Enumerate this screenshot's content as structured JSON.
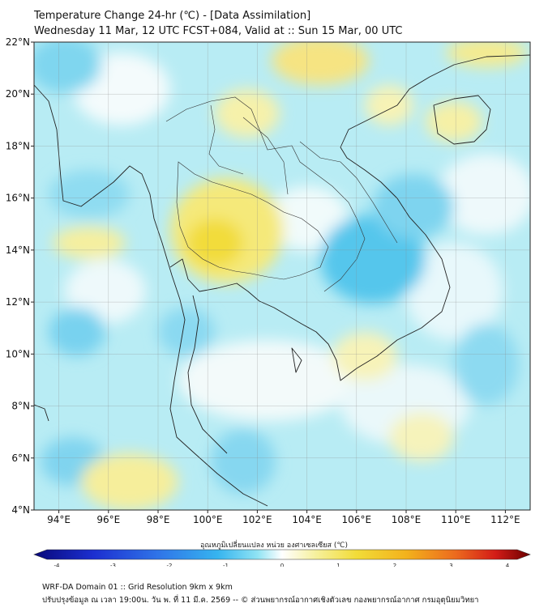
{
  "title": {
    "line1": "Temperature Change 24-hr (℃) - [Data Assimilation]",
    "line2": "Wednesday 11 Mar, 12 UTC FCST+084, Valid at :: Sun 15 Mar, 00 UTC"
  },
  "map": {
    "lat_labels": [
      "22°N",
      "20°N",
      "18°N",
      "16°N",
      "14°N",
      "12°N",
      "10°N",
      "8°N",
      "6°N",
      "4°N"
    ],
    "lon_labels": [
      "94°E",
      "96°E",
      "98°E",
      "100°E",
      "102°E",
      "104°E",
      "106°E",
      "108°E",
      "110°E",
      "112°E"
    ],
    "grid": true
  },
  "colorbar": {
    "title": "อุณหภูมิเปลี่ยนแปลง หน่วย องศาเซลเซียส (℃)",
    "ticks": [
      "-4",
      "-3",
      "-2",
      "-1",
      "0",
      "1",
      "2",
      "3",
      "4"
    ],
    "colors": [
      "#08087a",
      "#1c2fd0",
      "#2f74e8",
      "#36b4ef",
      "#69daf1",
      "#ffffff",
      "#f6f09a",
      "#f2dc38",
      "#f3b21c",
      "#ec6a1e",
      "#d31c17",
      "#6b0000"
    ]
  },
  "footer": {
    "line1": "WRF-DA Domain 01 :: Grid Resolution 9km x 9km",
    "line2": "ปรับปรุงข้อมูล ณ เวลา 19:00น. วัน พ. ที่ 11 มี.ค. 2569 -- © ส่วนพยากรณ์อากาศเชิงตัวเลข กองพยากรณ์อากาศ กรมอุตุนิยมวิทยา"
  }
}
